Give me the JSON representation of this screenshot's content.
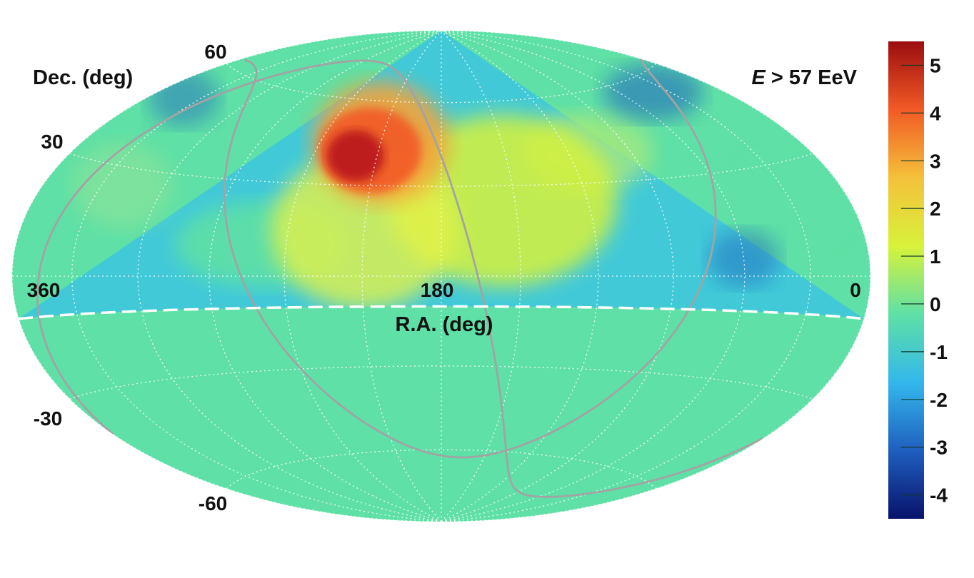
{
  "chart_data": {
    "type": "heatmap",
    "projection": "hammer-aitoff",
    "xlabel": "R.A. (deg)",
    "ylabel": "Dec. (deg)",
    "annotation": {
      "prefix": "E",
      "text": " > 57 EeV"
    },
    "ra_ticks": [
      "360",
      "180",
      "0"
    ],
    "dec_ticks": [
      "60",
      "30",
      "-30",
      "-60"
    ],
    "x_range": [
      360,
      0
    ],
    "y_range": [
      -90,
      90
    ],
    "grid": true,
    "field_of_view_limit_dec": -10,
    "hotspot": {
      "ra": 146.7,
      "dec": 43.2,
      "peak": 5.1
    },
    "colorbar": {
      "range": [
        -4.5,
        5.5
      ],
      "ticks": [
        "5",
        "4",
        "3",
        "2",
        "1",
        "0",
        "-1",
        "-2",
        "-3",
        "-4"
      ],
      "colors": [
        "#08136b",
        "#1f5fbf",
        "#33b8eb",
        "#5fe0a6",
        "#d8f23a",
        "#f4c13a",
        "#f25a25",
        "#9b0d10"
      ]
    },
    "colors": {
      "background": "#5fe0a6",
      "grid": "#ffffff",
      "galactic_curve": "#a3a3a3",
      "fov_boundary": "#ffffff"
    }
  }
}
